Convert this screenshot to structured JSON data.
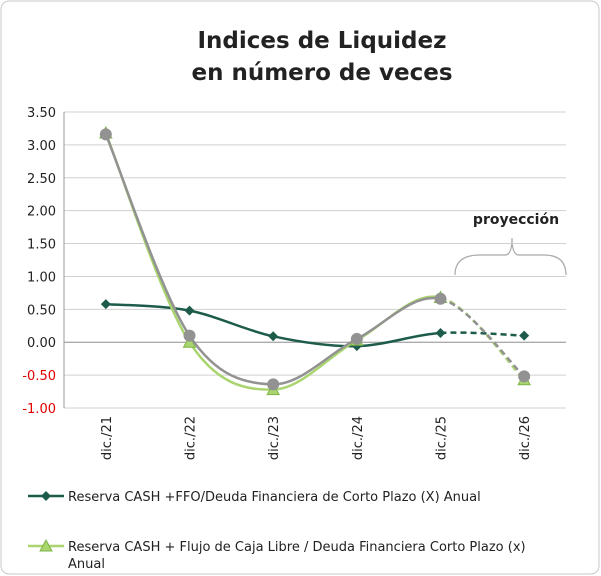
{
  "chart_data": {
    "type": "line",
    "title": "Indices de Liquidez",
    "subtitle": "en número de veces",
    "annotation": "proyección",
    "categories": [
      "dic./21",
      "dic./22",
      "dic./23",
      "dic./24",
      "dic./25",
      "dic./26"
    ],
    "series": [
      {
        "name": "Reserva CASH +FFO/Deuda Financiera de Corto Plazo (X) Anual",
        "color": "#1d5c4a",
        "marker": "diamond",
        "values": [
          0.58,
          0.48,
          0.09,
          -0.06,
          0.14,
          0.1
        ]
      },
      {
        "name": "Reserva CASH + Flujo de Caja Libre / Deuda Financiera Corto Plazo  (x) Anual",
        "color": "#a9d46e",
        "marker": "triangle",
        "values": [
          3.18,
          0.0,
          -0.72,
          0.03,
          0.68,
          -0.57
        ]
      },
      {
        "color": "#929292",
        "marker": "circle",
        "values": [
          3.16,
          0.1,
          -0.64,
          0.05,
          0.66,
          -0.52
        ]
      }
    ],
    "dashed_from": 4,
    "ylim": [
      -1,
      3.5
    ],
    "yticks": [
      {
        "value": -1,
        "label": "-1.00"
      },
      {
        "value": -0.5,
        "label": "-0.50"
      },
      {
        "value": 0,
        "label": "0.00"
      },
      {
        "value": 0.5,
        "label": "0.50"
      },
      {
        "value": 1,
        "label": "1.00"
      },
      {
        "value": 1.5,
        "label": "1.50"
      },
      {
        "value": 2,
        "label": "2.00"
      },
      {
        "value": 2.5,
        "label": "2.50"
      },
      {
        "value": 3,
        "label": "3.00"
      },
      {
        "value": 3.5,
        "label": "3.50"
      }
    ],
    "grid": true,
    "negative_tick_color": "#e00000"
  }
}
